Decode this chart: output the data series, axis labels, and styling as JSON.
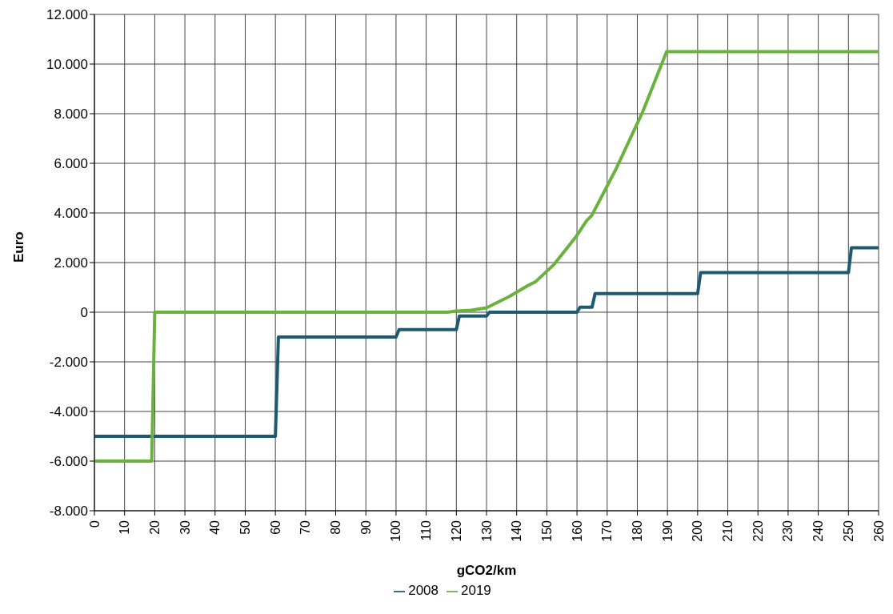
{
  "chart_data": {
    "type": "line",
    "xlabel": "gCO2/km",
    "ylabel": "Euro",
    "xlim": [
      0,
      260
    ],
    "xticks": [
      0,
      10,
      20,
      30,
      40,
      50,
      60,
      70,
      80,
      90,
      100,
      110,
      120,
      130,
      140,
      150,
      160,
      170,
      180,
      190,
      200,
      210,
      220,
      230,
      240,
      250,
      260
    ],
    "ylim": [
      -8000,
      12000
    ],
    "yticks": [
      {
        "value": -8000,
        "label": "-8.000"
      },
      {
        "value": -6000,
        "label": "-6.000"
      },
      {
        "value": -4000,
        "label": "-4.000"
      },
      {
        "value": -2000,
        "label": "-2.000"
      },
      {
        "value": 0,
        "label": "0"
      },
      {
        "value": 2000,
        "label": "2.000"
      },
      {
        "value": 4000,
        "label": "4.000"
      },
      {
        "value": 6000,
        "label": "6.000"
      },
      {
        "value": 8000,
        "label": "8.000"
      },
      {
        "value": 10000,
        "label": "10.000"
      },
      {
        "value": 12000,
        "label": "12.000"
      }
    ],
    "grid": true,
    "legend": "bottom",
    "marker": "none",
    "line_style": "solid",
    "series": [
      {
        "name": "2008",
        "color": "#1d5a72",
        "x": [
          0,
          60,
          61,
          100,
          101,
          120,
          121,
          130,
          131,
          160,
          161,
          165,
          166,
          200,
          201,
          250,
          251,
          260
        ],
        "values": [
          -5000,
          -5000,
          -1000,
          -1000,
          -700,
          -700,
          -150,
          -150,
          0,
          0,
          200,
          200,
          750,
          750,
          1600,
          1600,
          2600,
          2600
        ]
      },
      {
        "name": "2019",
        "color": "#6ab23e",
        "x": [
          0,
          19,
          20,
          117,
          120,
          125,
          130,
          137.5,
          143.7,
          146.3,
          152.5,
          159.6,
          163.2,
          164.9,
          172.9,
          181.7,
          189.7,
          260
        ],
        "values": [
          -6000,
          -6000,
          0,
          0,
          50,
          80,
          180,
          630,
          1070,
          1230,
          1940,
          3030,
          3690,
          3900,
          5760,
          8050,
          10500,
          10500
        ]
      }
    ]
  }
}
